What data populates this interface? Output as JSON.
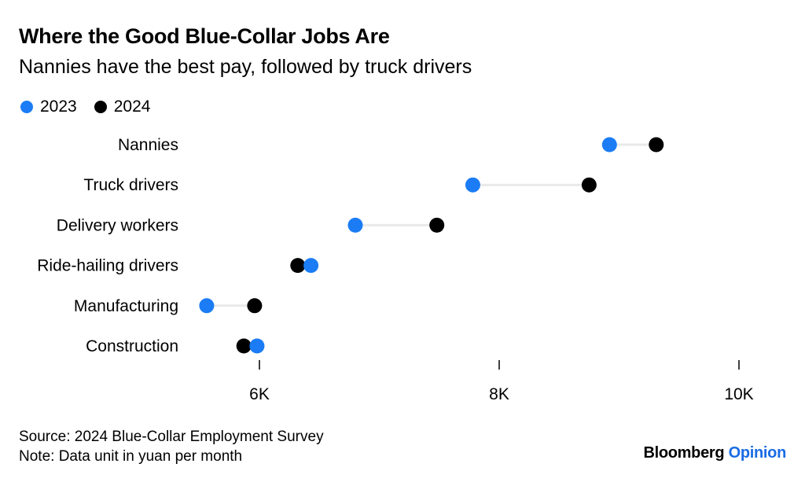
{
  "header": {
    "title": "Where the Good Blue-Collar Jobs Are",
    "subtitle": "Nannies have the best pay, followed by truck drivers"
  },
  "colors": {
    "series_2023": "#1b7cf5",
    "series_2024": "#000000",
    "connector": "#e9e9e9",
    "brand_accent": "#1a6ce4"
  },
  "footer": {
    "source": "Source: 2024 Blue-Collar Employment Survey",
    "note": "Note: Data unit in yuan per month"
  },
  "brand": {
    "name": "Bloomberg",
    "section": "Opinion"
  },
  "chart_data": {
    "type": "dot",
    "title": "Where the Good Blue-Collar Jobs Are",
    "subtitle": "Nannies have the best pay, followed by truck drivers",
    "categories": [
      "Nannies",
      "Truck drivers",
      "Delivery workers",
      "Ride-hailing drivers",
      "Manufacturing",
      "Construction"
    ],
    "series": [
      {
        "name": "2023",
        "values": [
          8920,
          7780,
          6800,
          6430,
          5560,
          5980
        ]
      },
      {
        "name": "2024",
        "values": [
          9310,
          8750,
          7480,
          6320,
          5960,
          5870
        ]
      }
    ],
    "xlim": [
      4900,
      10200
    ],
    "xticks": [
      6000,
      8000,
      10000
    ],
    "xtick_labels": [
      "6K",
      "8K",
      "10K"
    ],
    "legend": "top-left",
    "grid": false
  }
}
